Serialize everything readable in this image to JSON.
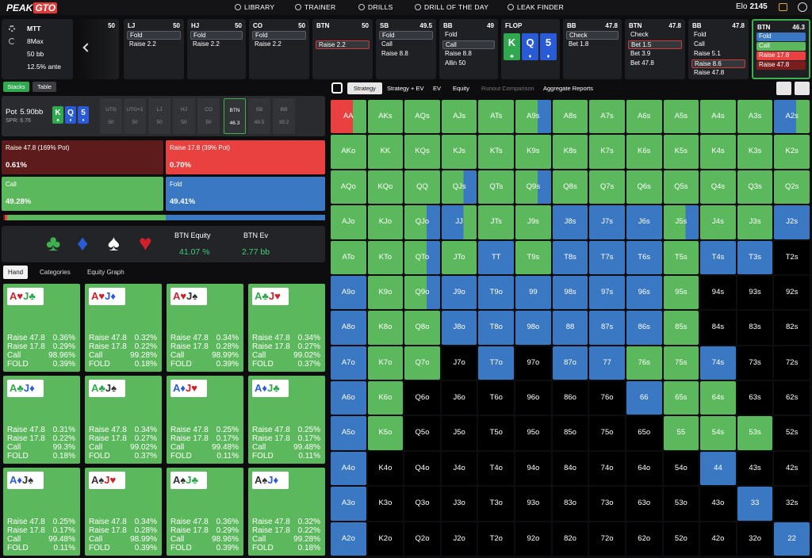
{
  "nav": {
    "logo_a": "PEAK",
    "logo_b": "GTO",
    "items": [
      "LIBRARY",
      "TRAINER",
      "DRILLS",
      "DRILL OF THE DAY",
      "LEAK FINDER"
    ],
    "elo_label": "Elo",
    "elo": "2145"
  },
  "game": {
    "format": "MTT",
    "table": "8Max",
    "stack": "50 bb",
    "ante": "12.5% ante"
  },
  "board": [
    {
      "rank": "K",
      "suit": "♣",
      "color": "#2fa84f"
    },
    {
      "rank": "Q",
      "suit": "♦",
      "color": "#2a5bd7"
    },
    {
      "rank": "5",
      "suit": "♦",
      "color": "#2a5bd7"
    }
  ],
  "actions": [
    {
      "stack": "50",
      "options": []
    },
    {
      "pos": "LJ",
      "stack": "50",
      "options": [
        "Fold",
        "Raise 2.2"
      ],
      "selected": 0
    },
    {
      "pos": "HJ",
      "stack": "50",
      "options": [
        "Fold",
        "Raise 2.2"
      ],
      "selected": 0
    },
    {
      "pos": "CO",
      "stack": "50",
      "options": [
        "Fold",
        "Raise 2.2"
      ],
      "selected": 0
    },
    {
      "pos": "BTN",
      "stack": "50",
      "options": [
        "Raise 2.2"
      ],
      "selected": 0,
      "highlight": "#d03a3a"
    },
    {
      "pos": "SB",
      "stack": "49.5",
      "options": [
        "Fold",
        "Call",
        "Raise 8.8"
      ],
      "selected": 0
    },
    {
      "pos": "BB",
      "stack": "49",
      "options": [
        "Fold",
        "Call",
        "Raise 8.8",
        "Allin 50"
      ],
      "selected": 1
    },
    {
      "street": "FLOP"
    },
    {
      "pos": "BB",
      "stack": "47.8",
      "options": [
        "Check",
        "Bet 1.8"
      ],
      "selected": 0
    },
    {
      "pos": "BTN",
      "stack": "47.8",
      "options": [
        "Check",
        "Bet 1.5",
        "Bet 3.9",
        "Bet 47.8"
      ],
      "selected": 1,
      "highlight": "#d03a3a"
    },
    {
      "pos": "BB",
      "stack": "47.8",
      "options": [
        "Fold",
        "Call",
        "Raise 5.1",
        "Raise 8.6",
        "Raise 47.8"
      ],
      "selected": 3,
      "highlight": "#d03a3a"
    },
    {
      "pos": "BTN",
      "stack": "46.3",
      "options": [
        "Fold",
        "Call",
        "Raise 17.8",
        "Raise 47.8"
      ],
      "option_colors": [
        "#3b78c4",
        "#5cb85c",
        "#e8413f",
        "#7a1d1d"
      ],
      "active": true
    }
  ],
  "view_tabs": [
    "Stacks",
    "Table"
  ],
  "pot": {
    "label": "Pot",
    "value": "5.90bb",
    "spr": "SPR: 6.76"
  },
  "seats": [
    {
      "pos": "UTG",
      "stack": "50"
    },
    {
      "pos": "UTG+1",
      "stack": "50"
    },
    {
      "pos": "LJ",
      "stack": "50"
    },
    {
      "pos": "HJ",
      "stack": "50"
    },
    {
      "pos": "CO",
      "stack": "50"
    },
    {
      "pos": "BTN",
      "stack": "46.3"
    },
    {
      "pos": "SB",
      "stack": "49.5"
    },
    {
      "pos": "BB",
      "stack": "39.2"
    }
  ],
  "active_seat": 5,
  "strategy": {
    "labels": [
      "Raise 47.8 (169% Pot)",
      "Raise 17.8 (39% Pot)",
      "Call",
      "Fold"
    ],
    "values": [
      0.61,
      0.7,
      49.28,
      49.41
    ],
    "value_labels": [
      "0.61%",
      "0.70%",
      "49.28%",
      "49.41%"
    ],
    "colors": [
      "#5e1b1b",
      "#e8413f",
      "#5cb85c",
      "#3b78c4"
    ]
  },
  "equity": {
    "suits": [
      {
        "glyph": "♣",
        "color": "#3fb04f"
      },
      {
        "glyph": "♦",
        "color": "#2a5bd7"
      },
      {
        "glyph": "♠",
        "color": "#ffffff"
      },
      {
        "glyph": "♥",
        "color": "#d0202a"
      }
    ],
    "labels": [
      "BTN Equity",
      "BTN Ev"
    ],
    "values": [
      "41.07 %",
      "2.77 bb"
    ]
  },
  "hand_tabs": [
    "Hand",
    "Categories",
    "Equity Graph"
  ],
  "hand_rows": [
    "Raise 47.8",
    "Raise 17.8",
    "Call",
    "FOLD"
  ],
  "suit_colors": {
    "♥": "#d0202a",
    "♣": "#2fa84f",
    "♦": "#2a5bd7",
    "♠": "#333333"
  },
  "hands": [
    {
      "cards": [
        {
          "rank": "A",
          "suit": "♥"
        },
        {
          "rank": "J",
          "suit": "♣"
        }
      ],
      "values": [
        "0.36%",
        "0.29%",
        "98.96%",
        "0.39%"
      ]
    },
    {
      "cards": [
        {
          "rank": "A",
          "suit": "♥"
        },
        {
          "rank": "J",
          "suit": "♦"
        }
      ],
      "values": [
        "0.32%",
        "0.22%",
        "99.28%",
        "0.18%"
      ]
    },
    {
      "cards": [
        {
          "rank": "A",
          "suit": "♥"
        },
        {
          "rank": "J",
          "suit": "♠"
        }
      ],
      "values": [
        "0.34%",
        "0.28%",
        "98.99%",
        "0.39%"
      ]
    },
    {
      "cards": [
        {
          "rank": "A",
          "suit": "♣"
        },
        {
          "rank": "J",
          "suit": "♥"
        }
      ],
      "values": [
        "0.34%",
        "0.27%",
        "99.02%",
        "0.37%"
      ]
    },
    {
      "cards": [
        {
          "rank": "A",
          "suit": "♣"
        },
        {
          "rank": "J",
          "suit": "♦"
        }
      ],
      "values": [
        "0.31%",
        "0.22%",
        "99.3%",
        "0.18%"
      ]
    },
    {
      "cards": [
        {
          "rank": "A",
          "suit": "♣"
        },
        {
          "rank": "J",
          "suit": "♠"
        }
      ],
      "values": [
        "0.34%",
        "0.27%",
        "99.02%",
        "0.37%"
      ]
    },
    {
      "cards": [
        {
          "rank": "A",
          "suit": "♦"
        },
        {
          "rank": "J",
          "suit": "♥"
        }
      ],
      "values": [
        "0.25%",
        "0.17%",
        "99.48%",
        "0.11%"
      ]
    },
    {
      "cards": [
        {
          "rank": "A",
          "suit": "♦"
        },
        {
          "rank": "J",
          "suit": "♣"
        }
      ],
      "values": [
        "0.25%",
        "0.17%",
        "99.48%",
        "0.11%"
      ]
    },
    {
      "cards": [
        {
          "rank": "A",
          "suit": "♦"
        },
        {
          "rank": "J",
          "suit": "♠"
        }
      ],
      "values": [
        "0.25%",
        "0.17%",
        "99.48%",
        "0.11%"
      ]
    },
    {
      "cards": [
        {
          "rank": "A",
          "suit": "♠"
        },
        {
          "rank": "J",
          "suit": "♥"
        }
      ],
      "values": [
        "0.34%",
        "0.28%",
        "98.99%",
        "0.39%"
      ]
    },
    {
      "cards": [
        {
          "rank": "A",
          "suit": "♠"
        },
        {
          "rank": "J",
          "suit": "♣"
        }
      ],
      "values": [
        "0.36%",
        "0.29%",
        "98.96%",
        "0.39%"
      ]
    },
    {
      "cards": [
        {
          "rank": "A",
          "suit": "♠"
        },
        {
          "rank": "J",
          "suit": "♦"
        }
      ],
      "values": [
        "0.32%",
        "0.22%",
        "99.28%",
        "0.18%"
      ]
    }
  ],
  "grid_tabs": [
    "Strategy",
    "Strategy + EV",
    "EV",
    "Equity",
    "Runout Comparison",
    "Aggregate Reports"
  ],
  "active_grid_tab": 0,
  "dim_grid_tab": 4,
  "range": {
    "palette": {
      "g": "#5cb85c",
      "b": "#3b78c4",
      "r": "#e8413f",
      "k": "#000000"
    },
    "labels": [
      [
        "AA",
        "AKs",
        "AQs",
        "AJs",
        "ATs",
        "A9s",
        "A8s",
        "A7s",
        "A6s",
        "A5s",
        "A4s",
        "A3s",
        "A2s"
      ],
      [
        "AKo",
        "KK",
        "KQs",
        "KJs",
        "KTs",
        "K9s",
        "K8s",
        "K7s",
        "K6s",
        "K5s",
        "K4s",
        "K3s",
        "K2s"
      ],
      [
        "AQo",
        "KQo",
        "QQ",
        "QJs",
        "QTs",
        "Q9s",
        "Q8s",
        "Q7s",
        "Q6s",
        "Q5s",
        "Q4s",
        "Q3s",
        "Q2s"
      ],
      [
        "AJo",
        "KJo",
        "QJo",
        "JJ",
        "JTs",
        "J9s",
        "J8s",
        "J7s",
        "J6s",
        "J5s",
        "J4s",
        "J3s",
        "J2s"
      ],
      [
        "ATo",
        "KTo",
        "QTo",
        "JTo",
        "TT",
        "T9s",
        "T8s",
        "T7s",
        "T6s",
        "T5s",
        "T4s",
        "T3s",
        "T2s"
      ],
      [
        "A9o",
        "K9o",
        "Q9o",
        "J9o",
        "T9o",
        "99",
        "98s",
        "97s",
        "96s",
        "95s",
        "94s",
        "93s",
        "92s"
      ],
      [
        "A8o",
        "K8o",
        "Q8o",
        "J8o",
        "T8o",
        "98o",
        "88",
        "87s",
        "86s",
        "85s",
        "84s",
        "83s",
        "82s"
      ],
      [
        "A7o",
        "K7o",
        "Q7o",
        "J7o",
        "T7o",
        "97o",
        "87o",
        "77",
        "76s",
        "75s",
        "74s",
        "73s",
        "72s"
      ],
      [
        "A6o",
        "K6o",
        "Q6o",
        "J6o",
        "T6o",
        "96o",
        "86o",
        "76o",
        "66",
        "65s",
        "64s",
        "63s",
        "62s"
      ],
      [
        "A5o",
        "K5o",
        "Q5o",
        "J5o",
        "T5o",
        "95o",
        "85o",
        "75o",
        "65o",
        "55",
        "54s",
        "53s",
        "52s"
      ],
      [
        "A4o",
        "K4o",
        "Q4o",
        "J4o",
        "T4o",
        "94o",
        "84o",
        "74o",
        "64o",
        "54o",
        "44",
        "43s",
        "42s"
      ],
      [
        "A3o",
        "K3o",
        "Q3o",
        "J3o",
        "T3o",
        "93o",
        "83o",
        "73o",
        "63o",
        "53o",
        "43o",
        "33",
        "32s"
      ],
      [
        "A2o",
        "K2o",
        "Q2o",
        "J2o",
        "T2o",
        "92o",
        "82o",
        "72o",
        "62o",
        "52o",
        "42o",
        "32o",
        "22"
      ]
    ],
    "colors": [
      "rg g g g g gb g g g g g g bg",
      "g g g g g g g g g g g g g",
      "g g g gb g gb g g g g g g g",
      "g g gb bg g g b b b gb g g b",
      "g g gb g b g b b b g b b k",
      "b g gb b b b b b b g k k k",
      "b g g b b b b b b g k k k",
      "b g g k b k b b g g b k k",
      "b g k k k k k k b g g k k",
      "b g k k k k k k k g g g k",
      "b k k k k k k k k k b k k",
      "b k k k k k k k k k k b k",
      "b k k k k k k k k k k k b"
    ]
  }
}
